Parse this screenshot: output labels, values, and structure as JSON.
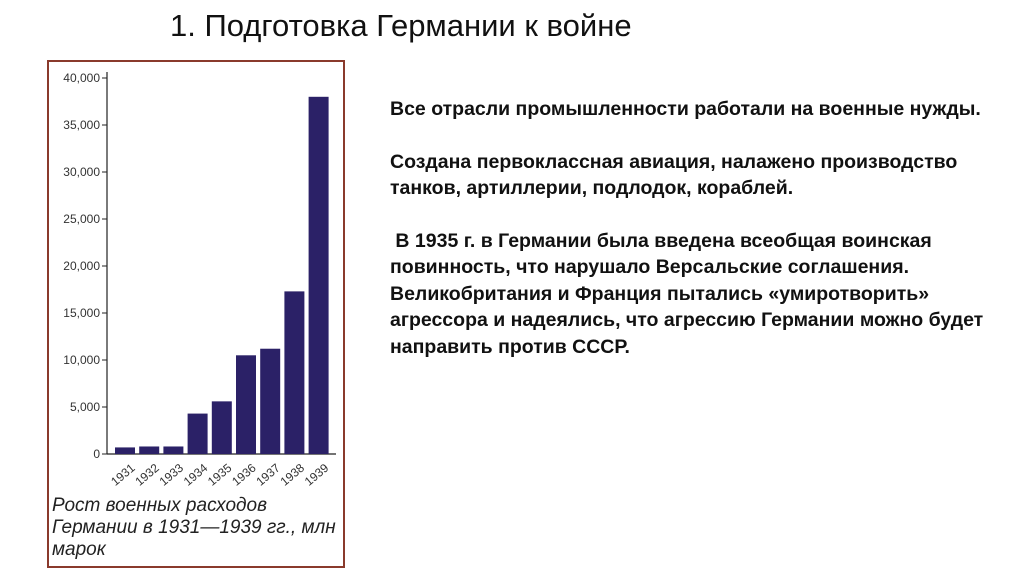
{
  "slide": {
    "title": "1. Подготовка Германии к войне",
    "paragraphs": [
      "Все отрасли промышленности работали на военные нужды.",
      "Создана первоклассная авиация, налажено производство танков, артиллерии, подлодок, кораблей.",
      " В 1935 г. в Германии была введена всеобщая воинская повинность, что нарушало Версальские соглашения. Великобритания и Франция пытались «умиротворить» агрессора и надеялись, что агрессию Германии можно будет направить против СССР."
    ]
  },
  "chart_data": {
    "type": "bar",
    "caption": "Рост военных расходов Германии в 1931—1939 гг., млн марок",
    "categories": [
      "1931",
      "1932",
      "1933",
      "1934",
      "1935",
      "1936",
      "1937",
      "1938",
      "1939"
    ],
    "values": [
      700,
      800,
      800,
      4300,
      5600,
      10500,
      11200,
      17300,
      38000
    ],
    "yticks": [
      "0",
      "5,000",
      "10,000",
      "15,000",
      "20,000",
      "25,000",
      "30,000",
      "35,000",
      "40,000"
    ],
    "ylim": [
      0,
      40000
    ],
    "bar_color": "#2b2167",
    "grid": false
  }
}
